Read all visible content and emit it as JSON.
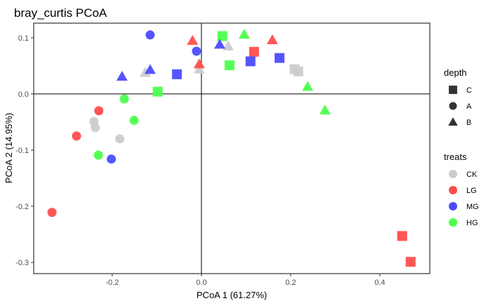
{
  "chart_data": {
    "type": "scatter",
    "title": "bray_curtis PCoA",
    "xlabel": "PCoA 1 (61.27%)",
    "ylabel": "PCoA 2 (14.95%)",
    "xlim": [
      -0.376,
      0.512
    ],
    "ylim": [
      -0.32,
      0.126
    ],
    "xticks": [
      -0.2,
      0.0,
      0.2,
      0.4
    ],
    "xtick_labels": [
      "-0.2",
      "0.0",
      "0.2",
      "0.4"
    ],
    "yticks": [
      0.1,
      0.0,
      -0.1,
      -0.2,
      -0.3
    ],
    "ytick_labels": [
      "0.1",
      "0.0",
      "-0.1",
      "-0.2",
      "-0.3"
    ],
    "grid": false,
    "reference_lines": {
      "x": 0,
      "y": 0
    },
    "legend_placement": "right",
    "shape_legend": {
      "title": "depth",
      "entries": [
        {
          "label": "C",
          "shape": "square"
        },
        {
          "label": "A",
          "shape": "circle"
        },
        {
          "label": "B",
          "shape": "triangle"
        }
      ]
    },
    "color_legend": {
      "title": "treats",
      "entries": [
        {
          "label": "CK",
          "color": "#CCCCCC"
        },
        {
          "label": "LG",
          "color": "#FF4C4C"
        },
        {
          "label": "MG",
          "color": "#4C4CFF"
        },
        {
          "label": "HG",
          "color": "#4CFF4C"
        }
      ]
    },
    "points": [
      {
        "x": -0.115,
        "y": 0.105,
        "treat": "MG",
        "depth": "A"
      },
      {
        "x": -0.011,
        "y": 0.076,
        "treat": "MG",
        "depth": "A"
      },
      {
        "x": -0.202,
        "y": -0.116,
        "treat": "MG",
        "depth": "A"
      },
      {
        "x": -0.23,
        "y": -0.03,
        "treat": "LG",
        "depth": "A"
      },
      {
        "x": -0.28,
        "y": -0.075,
        "treat": "LG",
        "depth": "A"
      },
      {
        "x": -0.335,
        "y": -0.211,
        "treat": "LG",
        "depth": "A"
      },
      {
        "x": -0.241,
        "y": -0.049,
        "treat": "CK",
        "depth": "A"
      },
      {
        "x": -0.238,
        "y": -0.06,
        "treat": "CK",
        "depth": "A"
      },
      {
        "x": -0.183,
        "y": -0.08,
        "treat": "CK",
        "depth": "A"
      },
      {
        "x": -0.173,
        "y": -0.009,
        "treat": "HG",
        "depth": "A"
      },
      {
        "x": -0.151,
        "y": -0.047,
        "treat": "HG",
        "depth": "A"
      },
      {
        "x": -0.231,
        "y": -0.109,
        "treat": "HG",
        "depth": "A"
      },
      {
        "x": -0.098,
        "y": 0.004,
        "treat": "HG",
        "depth": "C"
      },
      {
        "x": -0.055,
        "y": 0.035,
        "treat": "MG",
        "depth": "C"
      },
      {
        "x": 0.047,
        "y": 0.103,
        "treat": "HG",
        "depth": "C"
      },
      {
        "x": 0.063,
        "y": 0.051,
        "treat": "HG",
        "depth": "C"
      },
      {
        "x": 0.118,
        "y": 0.075,
        "treat": "LG",
        "depth": "C"
      },
      {
        "x": 0.11,
        "y": 0.058,
        "treat": "MG",
        "depth": "C"
      },
      {
        "x": 0.175,
        "y": 0.064,
        "treat": "MG",
        "depth": "C"
      },
      {
        "x": 0.209,
        "y": 0.044,
        "treat": "CK",
        "depth": "C"
      },
      {
        "x": 0.217,
        "y": 0.04,
        "treat": "CK",
        "depth": "C"
      },
      {
        "x": 0.45,
        "y": -0.253,
        "treat": "LG",
        "depth": "C"
      },
      {
        "x": 0.469,
        "y": -0.299,
        "treat": "LG",
        "depth": "C"
      },
      {
        "x": -0.02,
        "y": 0.095,
        "treat": "LG",
        "depth": "B"
      },
      {
        "x": -0.005,
        "y": 0.044,
        "treat": "CK",
        "depth": "B"
      },
      {
        "x": -0.005,
        "y": 0.053,
        "treat": "LG",
        "depth": "B"
      },
      {
        "x": -0.178,
        "y": 0.031,
        "treat": "MG",
        "depth": "B"
      },
      {
        "x": -0.126,
        "y": 0.038,
        "treat": "CK",
        "depth": "B"
      },
      {
        "x": -0.115,
        "y": 0.043,
        "treat": "MG",
        "depth": "B"
      },
      {
        "x": 0.06,
        "y": 0.085,
        "treat": "CK",
        "depth": "B"
      },
      {
        "x": 0.041,
        "y": 0.088,
        "treat": "MG",
        "depth": "B"
      },
      {
        "x": 0.096,
        "y": 0.106,
        "treat": "HG",
        "depth": "B"
      },
      {
        "x": 0.159,
        "y": 0.096,
        "treat": "LG",
        "depth": "B"
      },
      {
        "x": 0.238,
        "y": 0.013,
        "treat": "HG",
        "depth": "B"
      },
      {
        "x": 0.277,
        "y": -0.029,
        "treat": "HG",
        "depth": "B"
      }
    ]
  }
}
